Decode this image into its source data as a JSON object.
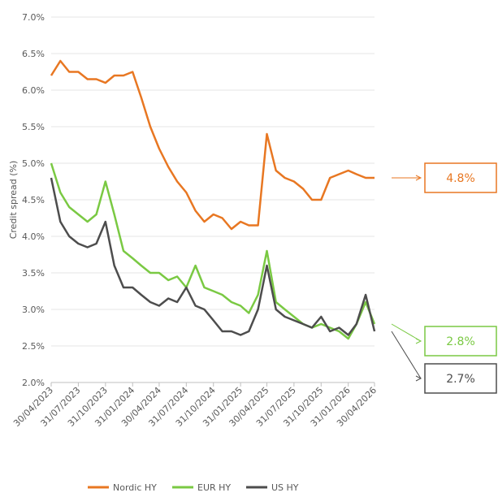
{
  "chart_data": {
    "type": "line",
    "ylabel": "Credit spread (%)",
    "x": [
      "30/04/2023",
      "31/05/2023",
      "30/06/2023",
      "31/07/2023",
      "31/08/2023",
      "30/09/2023",
      "31/10/2023",
      "30/11/2023",
      "31/12/2023",
      "31/01/2024",
      "29/02/2024",
      "31/03/2024",
      "30/04/2024",
      "31/05/2024",
      "30/06/2024",
      "31/07/2024",
      "31/08/2024",
      "30/09/2024",
      "31/10/2024",
      "30/11/2024",
      "31/12/2024",
      "31/01/2025",
      "28/02/2025",
      "31/03/2025",
      "30/04/2025",
      "31/05/2025",
      "30/06/2025",
      "31/07/2025",
      "31/08/2025",
      "30/09/2025",
      "31/10/2025",
      "30/11/2025",
      "31/12/2025",
      "31/01/2026",
      "28/02/2026",
      "31/03/2026",
      "30/04/2026"
    ],
    "series": [
      {
        "name": "Nordic HY",
        "color": "#e87722",
        "values": [
          6.2,
          6.4,
          6.25,
          6.25,
          6.15,
          6.15,
          6.1,
          6.2,
          6.2,
          6.25,
          5.9,
          5.5,
          5.2,
          4.95,
          4.75,
          4.6,
          4.35,
          4.2,
          4.3,
          4.25,
          4.1,
          4.2,
          4.15,
          4.15,
          5.4,
          4.9,
          4.8,
          4.75,
          4.65,
          4.5,
          4.5,
          4.8,
          4.85,
          4.9,
          4.85,
          4.8,
          4.8
        ]
      },
      {
        "name": "EUR HY",
        "color": "#7ac943",
        "values": [
          5.0,
          4.6,
          4.4,
          4.3,
          4.2,
          4.3,
          4.75,
          4.3,
          3.8,
          3.7,
          3.6,
          3.5,
          3.5,
          3.4,
          3.45,
          3.3,
          3.6,
          3.3,
          3.25,
          3.2,
          3.1,
          3.05,
          2.95,
          3.2,
          3.8,
          3.1,
          3.0,
          2.9,
          2.8,
          2.75,
          2.8,
          2.75,
          2.7,
          2.6,
          2.8,
          3.1,
          2.8
        ]
      },
      {
        "name": "US HY",
        "color": "#4d4d4d",
        "values": [
          4.8,
          4.2,
          4.0,
          3.9,
          3.85,
          3.9,
          4.2,
          3.6,
          3.3,
          3.3,
          3.2,
          3.1,
          3.05,
          3.15,
          3.1,
          3.3,
          3.05,
          3.0,
          2.85,
          2.7,
          2.7,
          2.65,
          2.7,
          3.0,
          3.6,
          3.0,
          2.9,
          2.85,
          2.8,
          2.75,
          2.9,
          2.7,
          2.75,
          2.65,
          2.8,
          3.2,
          2.7
        ]
      }
    ],
    "ylim": [
      2,
      7
    ],
    "yticks": [
      {
        "value": 2,
        "label": "2.0%"
      },
      {
        "value": 2.5,
        "label": "2.5%"
      },
      {
        "value": 3,
        "label": "3.0%"
      },
      {
        "value": 3.5,
        "label": "3.5%"
      },
      {
        "value": 4,
        "label": "4.0%"
      },
      {
        "value": 4.5,
        "label": "4.5%"
      },
      {
        "value": 5,
        "label": "5.0%"
      },
      {
        "value": 5.5,
        "label": "5.5%"
      },
      {
        "value": 6,
        "label": "6.0%"
      },
      {
        "value": 6.5,
        "label": "6.5%"
      },
      {
        "value": 7,
        "label": "7.0%"
      }
    ],
    "xlim": [
      "30/04/2023",
      "30/04/2026"
    ],
    "xticks": [
      "30/04/2023",
      "31/07/2023",
      "31/10/2023",
      "31/01/2024",
      "30/04/2024",
      "31/07/2024",
      "31/10/2024",
      "31/01/2025",
      "30/04/2025",
      "31/07/2025",
      "31/10/2025",
      "31/01/2026",
      "30/04/2026"
    ],
    "grid": true,
    "legend": "bottom",
    "annotations": [
      {
        "label": "4.8%",
        "value": 4.8,
        "color": "#e87722"
      },
      {
        "label": "2.8%",
        "value": 2.8,
        "color": "#7ac943"
      },
      {
        "label": "2.7%",
        "value": 2.7,
        "color": "#4d4d4d"
      }
    ]
  }
}
